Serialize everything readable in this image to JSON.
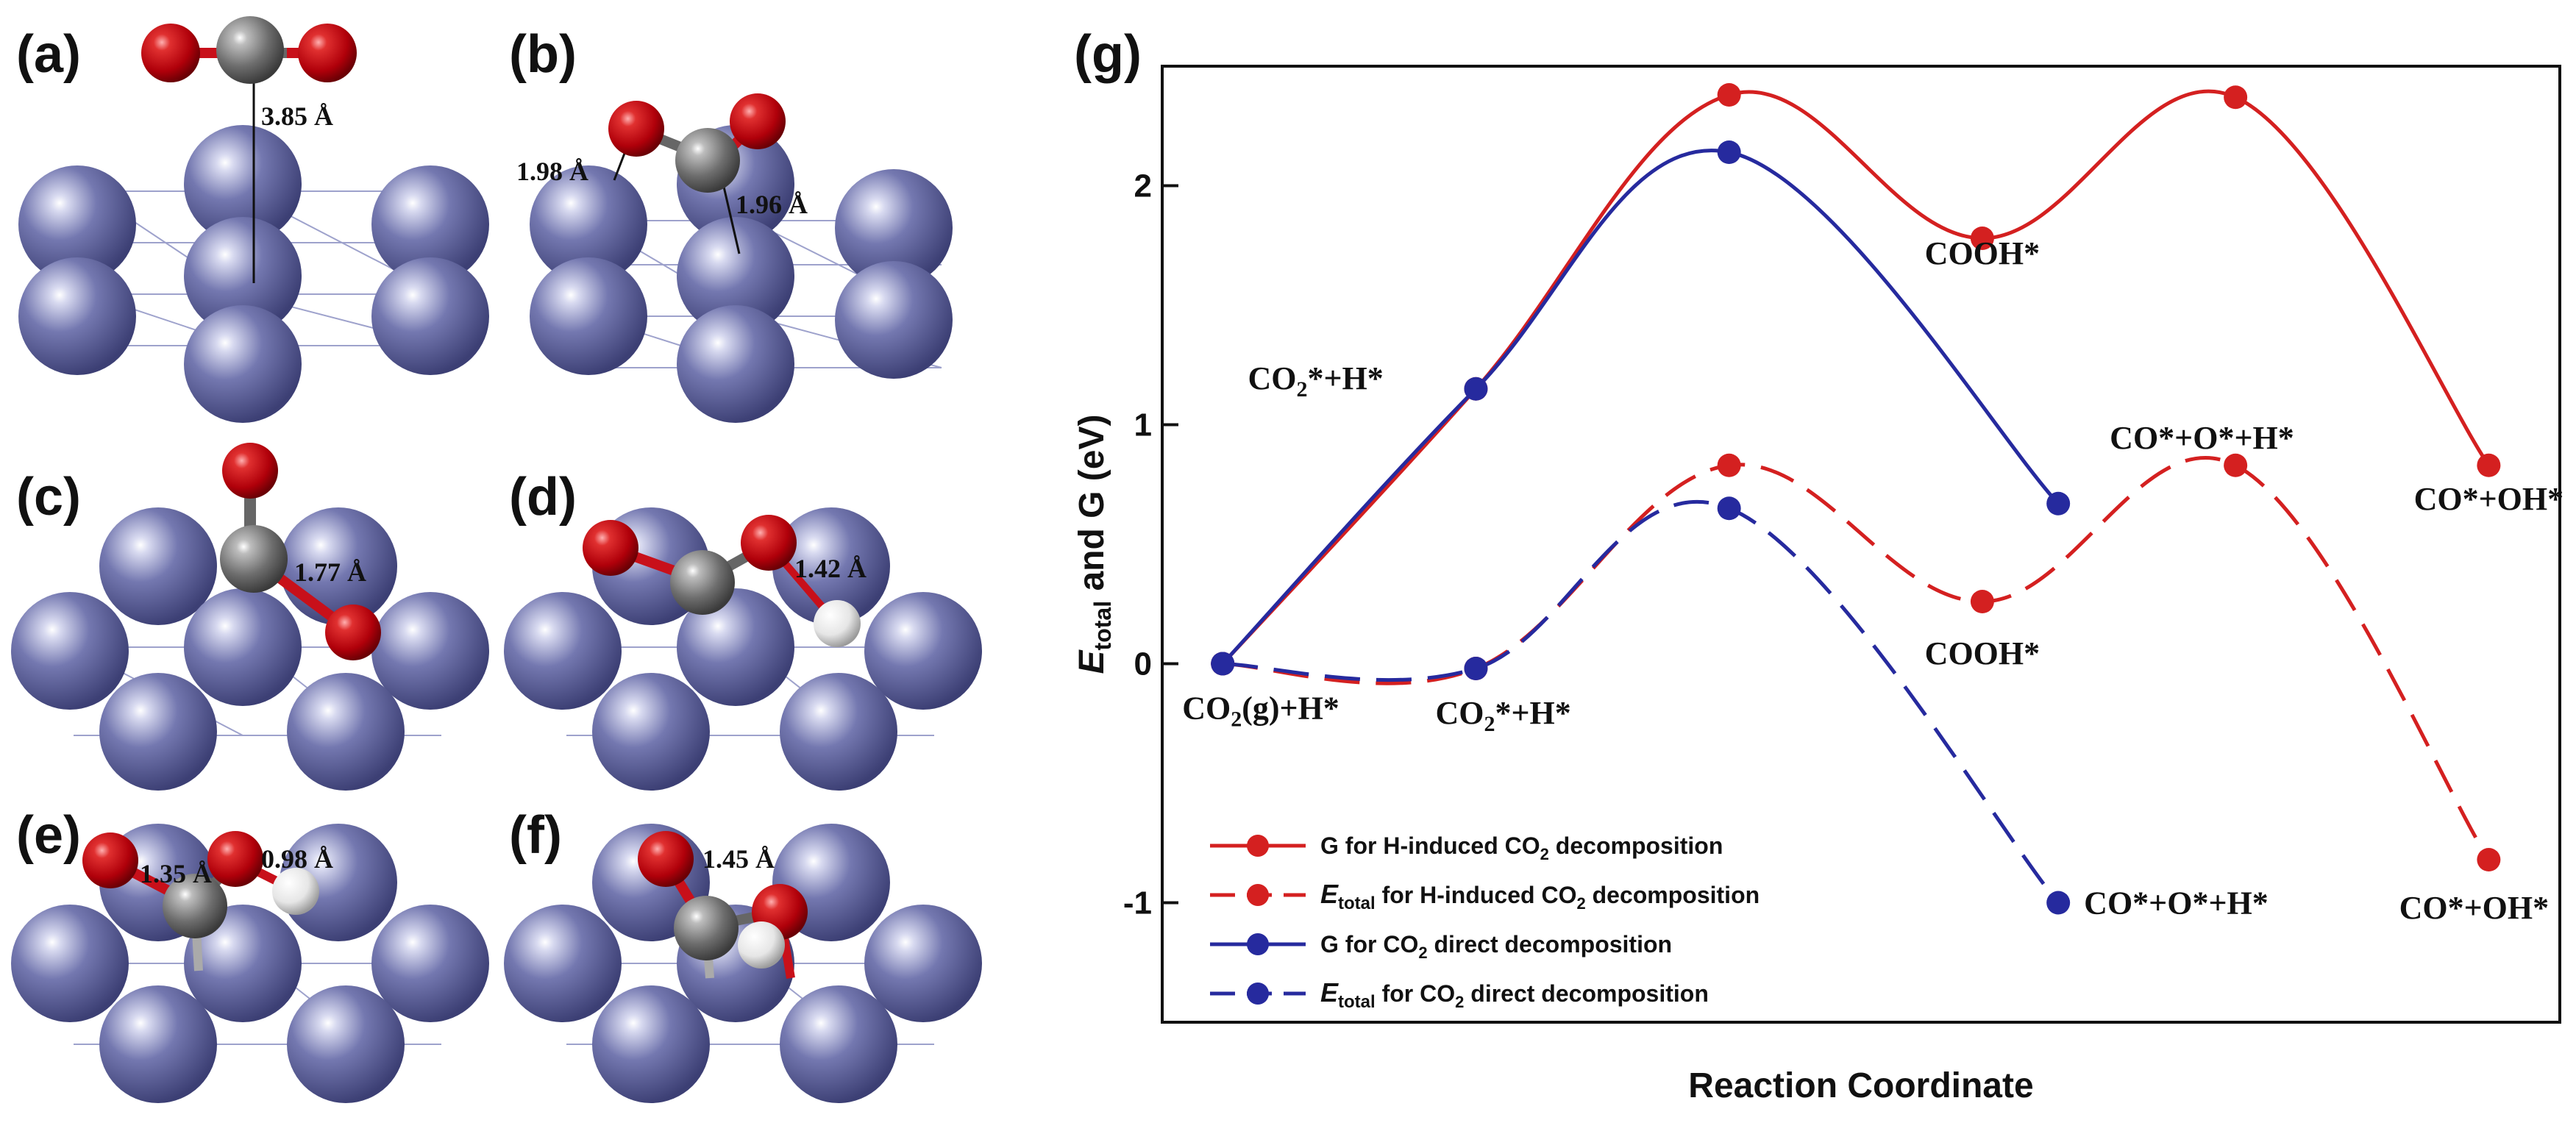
{
  "panels": {
    "a": {
      "letter": "(a)",
      "distance": "3.85 Å"
    },
    "b": {
      "letter": "(b)",
      "distance_left": "1.98 Å",
      "distance_right": "1.96 Å"
    },
    "c": {
      "letter": "(c)",
      "distance": "1.77 Å"
    },
    "d": {
      "letter": "(d)",
      "distance": "1.42 Å"
    },
    "e": {
      "letter": "(e)",
      "distance_left": "1.35 Å",
      "distance_right": "0.98 Å"
    },
    "f": {
      "letter": "(f)",
      "distance": "1.45 Å"
    },
    "g": {
      "letter": "(g)"
    }
  },
  "colors": {
    "red": "#d42020",
    "blue": "#262a9e",
    "metal": "#6b6fa8",
    "carbon": "#6e6e6e",
    "oxygen": "#c8101a",
    "hydrogen": "#f2f2f2"
  },
  "chart_data": {
    "type": "line",
    "xlabel": "Reaction Coordinate",
    "ylabel": "E_total and G (eV)",
    "ylabel_parts": {
      "e": "E",
      "sub": "total",
      "rest": " and  G (eV)"
    },
    "ylim": [
      -1.5,
      2.5
    ],
    "yticks": [
      -1,
      0,
      1,
      2
    ],
    "ytick_labels": [
      "-1",
      "0",
      "1",
      "2"
    ],
    "x_positions": [
      0,
      1,
      2,
      3,
      4,
      5
    ],
    "series": [
      {
        "name": "G for H-induced CO₂ decomposition",
        "style": "solid",
        "color": "red",
        "points": [
          [
            0,
            0
          ],
          [
            1,
            1.15
          ],
          [
            2,
            2.38
          ],
          [
            3,
            1.78
          ],
          [
            4,
            2.37
          ],
          [
            5,
            0.83
          ]
        ]
      },
      {
        "name": "E_total for H-induced CO₂ decomposition",
        "style": "dashed",
        "color": "red",
        "points": [
          [
            0,
            0
          ],
          [
            1,
            -0.02
          ],
          [
            2,
            0.83
          ],
          [
            3,
            0.26
          ],
          [
            4,
            0.83
          ],
          [
            5,
            -0.82
          ]
        ]
      },
      {
        "name": "G for CO₂ direct decomposition",
        "style": "solid",
        "color": "blue",
        "points": [
          [
            0,
            0
          ],
          [
            1,
            1.15
          ],
          [
            2,
            2.14
          ],
          [
            3.3,
            0.67
          ]
        ]
      },
      {
        "name": "E_total for CO₂ direct decomposition",
        "style": "dashed",
        "color": "blue",
        "points": [
          [
            0,
            0
          ],
          [
            1,
            -0.02
          ],
          [
            2,
            0.65
          ],
          [
            3.3,
            -1.0
          ]
        ]
      }
    ],
    "legend": [
      {
        "color": "red",
        "style": "solid",
        "pre": "G for H-induced CO",
        "sub": "2",
        "post": " decomposition"
      },
      {
        "color": "red",
        "style": "dashed",
        "e": "E",
        "esub": "total",
        "pre": " for H-induced CO",
        "sub": "2",
        "post": " decomposition"
      },
      {
        "color": "blue",
        "style": "solid",
        "pre": "G for CO",
        "sub": "2",
        "post": " direct decomposition"
      },
      {
        "color": "blue",
        "style": "dashed",
        "e": "E",
        "esub": "total",
        "pre": " for CO",
        "sub": "2",
        "post": " direct decomposition"
      }
    ],
    "legend_position": "bottom-left",
    "annotations": [
      {
        "pre": "CO",
        "sub": "2",
        "post": "*+H*",
        "x": 1,
        "y": 1.15
      },
      {
        "pre": "COOH*",
        "x": 3,
        "y": 1.78
      },
      {
        "pre": "CO*+O*+H*",
        "x": 3.3,
        "y": 0.67
      },
      {
        "pre": "CO*+OH*",
        "x": 5,
        "y": 0.83
      },
      {
        "pre": "CO",
        "sub": "2",
        "post": "(g)+H*",
        "x": 0,
        "y": 0
      },
      {
        "pre": "CO",
        "sub": "2",
        "post": "*+H*",
        "x": 1,
        "y": -0.02
      },
      {
        "pre": "COOH*",
        "x": 3,
        "y": 0.26
      },
      {
        "pre": "CO*+O*+H*",
        "x": 3.3,
        "y": -1.0
      },
      {
        "pre": "CO*+OH*",
        "x": 5,
        "y": -0.82
      }
    ]
  }
}
